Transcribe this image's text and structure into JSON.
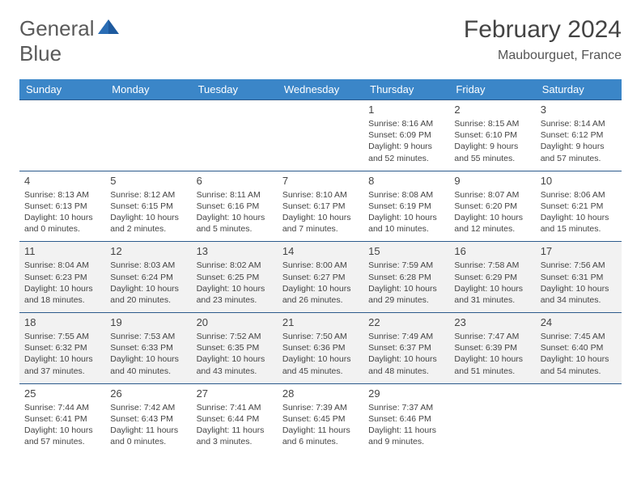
{
  "brand": {
    "line1": "General",
    "line2": "Blue"
  },
  "title": "February 2024",
  "location": "Maubourguet, France",
  "colors": {
    "header_bg": "#3b86c8",
    "header_text": "#ffffff",
    "border": "#2c5a8c",
    "shade": "#f2f2f2",
    "text": "#444444",
    "brand_gray": "#5a5a5a",
    "brand_blue": "#2a6db5"
  },
  "day_headers": [
    "Sunday",
    "Monday",
    "Tuesday",
    "Wednesday",
    "Thursday",
    "Friday",
    "Saturday"
  ],
  "weeks": [
    [
      {
        "n": "",
        "lines": []
      },
      {
        "n": "",
        "lines": []
      },
      {
        "n": "",
        "lines": []
      },
      {
        "n": "",
        "lines": []
      },
      {
        "n": "1",
        "lines": [
          "Sunrise: 8:16 AM",
          "Sunset: 6:09 PM",
          "Daylight: 9 hours and 52 minutes."
        ]
      },
      {
        "n": "2",
        "lines": [
          "Sunrise: 8:15 AM",
          "Sunset: 6:10 PM",
          "Daylight: 9 hours and 55 minutes."
        ]
      },
      {
        "n": "3",
        "lines": [
          "Sunrise: 8:14 AM",
          "Sunset: 6:12 PM",
          "Daylight: 9 hours and 57 minutes."
        ]
      }
    ],
    [
      {
        "n": "4",
        "lines": [
          "Sunrise: 8:13 AM",
          "Sunset: 6:13 PM",
          "Daylight: 10 hours and 0 minutes."
        ]
      },
      {
        "n": "5",
        "lines": [
          "Sunrise: 8:12 AM",
          "Sunset: 6:15 PM",
          "Daylight: 10 hours and 2 minutes."
        ]
      },
      {
        "n": "6",
        "lines": [
          "Sunrise: 8:11 AM",
          "Sunset: 6:16 PM",
          "Daylight: 10 hours and 5 minutes."
        ]
      },
      {
        "n": "7",
        "lines": [
          "Sunrise: 8:10 AM",
          "Sunset: 6:17 PM",
          "Daylight: 10 hours and 7 minutes."
        ]
      },
      {
        "n": "8",
        "lines": [
          "Sunrise: 8:08 AM",
          "Sunset: 6:19 PM",
          "Daylight: 10 hours and 10 minutes."
        ]
      },
      {
        "n": "9",
        "lines": [
          "Sunrise: 8:07 AM",
          "Sunset: 6:20 PM",
          "Daylight: 10 hours and 12 minutes."
        ]
      },
      {
        "n": "10",
        "lines": [
          "Sunrise: 8:06 AM",
          "Sunset: 6:21 PM",
          "Daylight: 10 hours and 15 minutes."
        ]
      }
    ],
    [
      {
        "n": "11",
        "lines": [
          "Sunrise: 8:04 AM",
          "Sunset: 6:23 PM",
          "Daylight: 10 hours and 18 minutes."
        ]
      },
      {
        "n": "12",
        "lines": [
          "Sunrise: 8:03 AM",
          "Sunset: 6:24 PM",
          "Daylight: 10 hours and 20 minutes."
        ]
      },
      {
        "n": "13",
        "lines": [
          "Sunrise: 8:02 AM",
          "Sunset: 6:25 PM",
          "Daylight: 10 hours and 23 minutes."
        ]
      },
      {
        "n": "14",
        "lines": [
          "Sunrise: 8:00 AM",
          "Sunset: 6:27 PM",
          "Daylight: 10 hours and 26 minutes."
        ]
      },
      {
        "n": "15",
        "lines": [
          "Sunrise: 7:59 AM",
          "Sunset: 6:28 PM",
          "Daylight: 10 hours and 29 minutes."
        ]
      },
      {
        "n": "16",
        "lines": [
          "Sunrise: 7:58 AM",
          "Sunset: 6:29 PM",
          "Daylight: 10 hours and 31 minutes."
        ]
      },
      {
        "n": "17",
        "lines": [
          "Sunrise: 7:56 AM",
          "Sunset: 6:31 PM",
          "Daylight: 10 hours and 34 minutes."
        ]
      }
    ],
    [
      {
        "n": "18",
        "lines": [
          "Sunrise: 7:55 AM",
          "Sunset: 6:32 PM",
          "Daylight: 10 hours and 37 minutes."
        ]
      },
      {
        "n": "19",
        "lines": [
          "Sunrise: 7:53 AM",
          "Sunset: 6:33 PM",
          "Daylight: 10 hours and 40 minutes."
        ]
      },
      {
        "n": "20",
        "lines": [
          "Sunrise: 7:52 AM",
          "Sunset: 6:35 PM",
          "Daylight: 10 hours and 43 minutes."
        ]
      },
      {
        "n": "21",
        "lines": [
          "Sunrise: 7:50 AM",
          "Sunset: 6:36 PM",
          "Daylight: 10 hours and 45 minutes."
        ]
      },
      {
        "n": "22",
        "lines": [
          "Sunrise: 7:49 AM",
          "Sunset: 6:37 PM",
          "Daylight: 10 hours and 48 minutes."
        ]
      },
      {
        "n": "23",
        "lines": [
          "Sunrise: 7:47 AM",
          "Sunset: 6:39 PM",
          "Daylight: 10 hours and 51 minutes."
        ]
      },
      {
        "n": "24",
        "lines": [
          "Sunrise: 7:45 AM",
          "Sunset: 6:40 PM",
          "Daylight: 10 hours and 54 minutes."
        ]
      }
    ],
    [
      {
        "n": "25",
        "lines": [
          "Sunrise: 7:44 AM",
          "Sunset: 6:41 PM",
          "Daylight: 10 hours and 57 minutes."
        ]
      },
      {
        "n": "26",
        "lines": [
          "Sunrise: 7:42 AM",
          "Sunset: 6:43 PM",
          "Daylight: 11 hours and 0 minutes."
        ]
      },
      {
        "n": "27",
        "lines": [
          "Sunrise: 7:41 AM",
          "Sunset: 6:44 PM",
          "Daylight: 11 hours and 3 minutes."
        ]
      },
      {
        "n": "28",
        "lines": [
          "Sunrise: 7:39 AM",
          "Sunset: 6:45 PM",
          "Daylight: 11 hours and 6 minutes."
        ]
      },
      {
        "n": "29",
        "lines": [
          "Sunrise: 7:37 AM",
          "Sunset: 6:46 PM",
          "Daylight: 11 hours and 9 minutes."
        ]
      },
      {
        "n": "",
        "lines": []
      },
      {
        "n": "",
        "lines": []
      }
    ]
  ],
  "shaded_rows": [
    2,
    3
  ]
}
